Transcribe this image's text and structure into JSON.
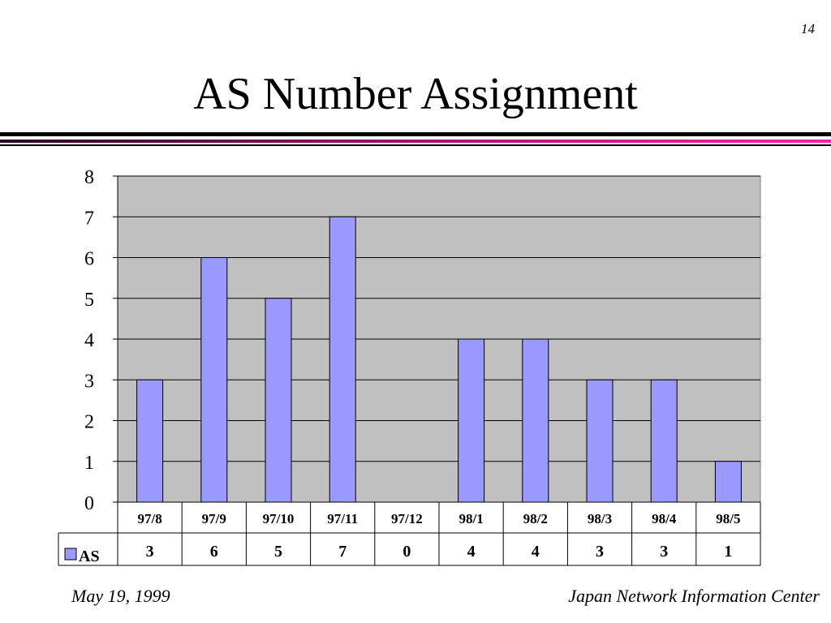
{
  "slide": {
    "number": "14",
    "title": "AS Number Assignment",
    "footer_left": "May 19, 1999",
    "footer_right": "Japan Network Information Center"
  },
  "colors": {
    "plot_background": "#c0c0c0",
    "bar_fill": "#9999ff",
    "accent_rule": "#ff1fa8"
  },
  "chart_data": {
    "type": "bar",
    "categories": [
      "97/8",
      "97/9",
      "97/10",
      "97/11",
      "97/12",
      "98/1",
      "98/2",
      "98/3",
      "98/4",
      "98/5"
    ],
    "series": [
      {
        "name": "AS",
        "values": [
          3,
          6,
          5,
          7,
          0,
          4,
          4,
          3,
          3,
          1
        ]
      }
    ],
    "ylim": [
      0,
      8
    ],
    "yticks": [
      "0",
      "1",
      "2",
      "3",
      "4",
      "5",
      "6",
      "7",
      "8"
    ],
    "grid": true,
    "legend": "data-table-left",
    "data_table": true
  }
}
